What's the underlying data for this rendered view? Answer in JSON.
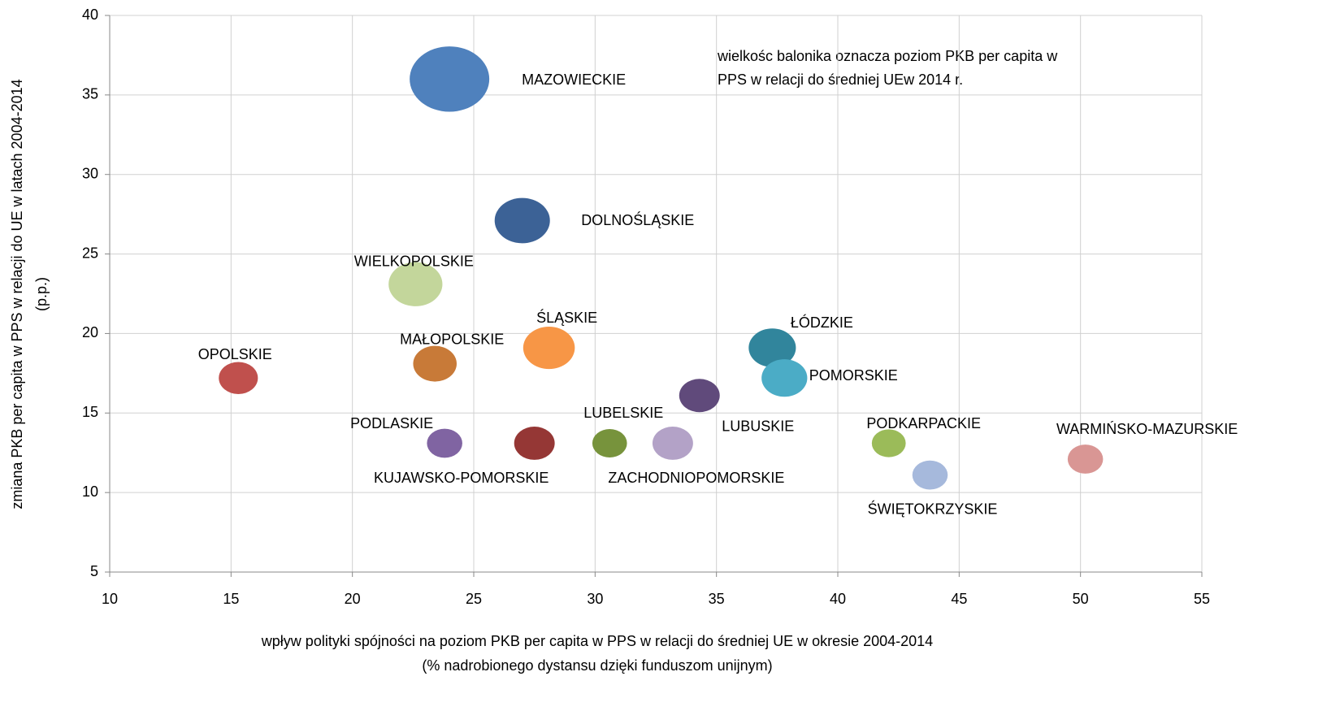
{
  "chart_data": {
    "type": "bubble",
    "x_label": [
      "wpływ polityki spójności na poziom PKB per capita w PPS w relacji do średniej UE w okresie 2004-2014",
      "(% nadrobionego dystansu dzięki funduszom unijnym)"
    ],
    "y_label": [
      "zmiana PKB per capita w PPS w relacji do UE w latach 2004-2014",
      "(p.p.)"
    ],
    "annotation": [
      "wielkośc balonika oznacza poziom PKB per capita w",
      "PPS w relacji do średniej UEw 2014 r."
    ],
    "xlim": [
      10,
      55
    ],
    "xticks": [
      10,
      15,
      20,
      25,
      30,
      35,
      40,
      45,
      50,
      55
    ],
    "ylim": [
      5,
      40
    ],
    "yticks": [
      5,
      10,
      15,
      20,
      25,
      30,
      35,
      40
    ],
    "grid": true,
    "points": [
      {
        "label": "MAZOWIECKIE",
        "x": 24.0,
        "y": 36.0,
        "size": 108,
        "color": "#4f81bd"
      },
      {
        "label": "DOLNOŚLĄSKIE",
        "x": 27.0,
        "y": 27.1,
        "size": 75,
        "color": "#3c6296"
      },
      {
        "label": "WIELKOPOLSKIE",
        "x": 22.6,
        "y": 23.1,
        "size": 73,
        "color": "#c3d69b"
      },
      {
        "label": "OPOLSKIE",
        "x": 15.3,
        "y": 17.2,
        "size": 53,
        "color": "#c0504d"
      },
      {
        "label": "MAŁOPOLSKIE",
        "x": 23.4,
        "y": 18.1,
        "size": 59,
        "color": "#c87a38"
      },
      {
        "label": "ŚLĄSKIE",
        "x": 28.1,
        "y": 19.1,
        "size": 70,
        "color": "#f79646"
      },
      {
        "label": "ŁÓDZKIE",
        "x": 37.3,
        "y": 19.1,
        "size": 64,
        "color": "#31859c"
      },
      {
        "label": "POMORSKIE",
        "x": 37.8,
        "y": 17.2,
        "size": 62,
        "color": "#4bacc6"
      },
      {
        "label": "LUBUSKIE",
        "x": 34.3,
        "y": 16.1,
        "size": 55,
        "color": "#604a7b"
      },
      {
        "label": "PODLASKIE",
        "x": 23.8,
        "y": 13.1,
        "size": 48,
        "color": "#8064a2"
      },
      {
        "label": "KUJAWSKO-POMORSKIE",
        "x": 27.5,
        "y": 13.1,
        "size": 55,
        "color": "#953735"
      },
      {
        "label": "LUBELSKIE",
        "x": 30.6,
        "y": 13.1,
        "size": 47,
        "color": "#77933c"
      },
      {
        "label": "ZACHODNIOPOMORSKIE",
        "x": 33.2,
        "y": 13.1,
        "size": 55,
        "color": "#b3a2c7"
      },
      {
        "label": "PODKARPACKIE",
        "x": 42.1,
        "y": 13.1,
        "size": 46,
        "color": "#9bbb59"
      },
      {
        "label": "ŚWIĘTOKRZYSKIE",
        "x": 43.8,
        "y": 11.1,
        "size": 48,
        "color": "#a6b9dc"
      },
      {
        "label": "WARMIŃSKO-MAZURSKIE",
        "x": 50.2,
        "y": 12.1,
        "size": 48,
        "color": "#d99694"
      }
    ]
  }
}
